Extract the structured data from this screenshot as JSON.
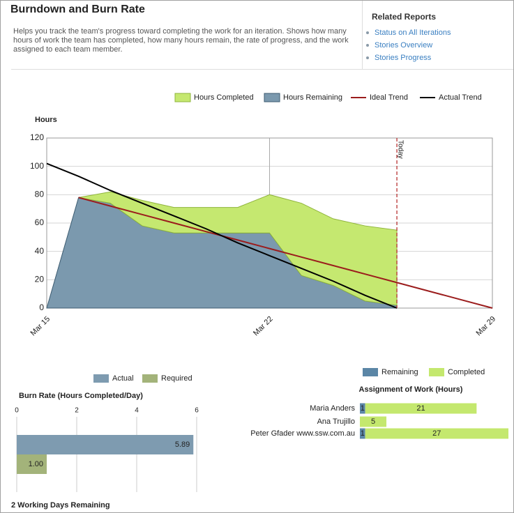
{
  "header": {
    "title": "Burndown and Burn Rate",
    "description": "Helps you track the team's progress toward completing the work for an iteration. Shows how many hours of work the team has completed, how many hours remain, the rate of progress, and the work assigned to each team member."
  },
  "related_reports": {
    "title": "Related Reports",
    "links": [
      "Status on All Iterations",
      "Stories Overview",
      "Stories Progress"
    ]
  },
  "chart_data": [
    {
      "type": "combo",
      "y_label": "Hours",
      "categories": [
        "Mar 15",
        null,
        null,
        null,
        null,
        null,
        null,
        "Mar 22",
        null,
        null,
        null,
        null,
        null,
        null,
        "Mar 29"
      ],
      "series": [
        {
          "name": "Hours Completed",
          "type": "area",
          "stacked": true,
          "color": "#c5e870",
          "stroke": "#8fb43c",
          "values": [
            null,
            0,
            8,
            18,
            18,
            18,
            18,
            27,
            51,
            47,
            53,
            53,
            null,
            null,
            null
          ]
        },
        {
          "name": "Hours Remaining",
          "type": "area",
          "stacked": true,
          "color": "#7b99ae",
          "stroke": "#3c5b70",
          "values": [
            0,
            78,
            74,
            58,
            53,
            53,
            53,
            53,
            23,
            16,
            5,
            2,
            null,
            null,
            null
          ]
        },
        {
          "name": "Ideal Trend",
          "type": "line",
          "color": "#9b1c1c",
          "values": [
            null,
            78,
            72,
            66,
            60,
            54,
            48,
            42,
            36,
            30,
            24,
            18,
            12,
            6,
            0
          ]
        },
        {
          "name": "Actual Trend",
          "type": "line",
          "color": "#000000",
          "values": [
            102,
            93,
            83,
            74,
            65,
            56,
            46,
            37,
            28,
            19,
            9,
            0,
            null,
            null,
            null
          ]
        }
      ],
      "ylim": [
        0,
        120
      ],
      "yticks": [
        0,
        20,
        40,
        60,
        80,
        100,
        120
      ],
      "grid": true,
      "annotations": [
        {
          "label": "Today",
          "index": 11,
          "color": "#b22222"
        }
      ]
    },
    {
      "type": "bar",
      "orientation": "horizontal",
      "title": "Burn Rate (Hours Completed/Day)",
      "series": [
        {
          "name": "Actual",
          "color": "#7e9bb0",
          "values": [
            5.89
          ],
          "value_labels": [
            "5.89"
          ]
        },
        {
          "name": "Required",
          "color": "#a3b37a",
          "values": [
            1
          ],
          "value_labels": [
            "1.00"
          ]
        }
      ],
      "xlim": [
        0,
        6
      ],
      "xticks": [
        0,
        2,
        4,
        6
      ],
      "grid": true
    },
    {
      "type": "bar",
      "orientation": "horizontal",
      "stacked": true,
      "title": "Assignment of Work (Hours)",
      "categories": [
        "Maria Anders",
        "Ana Trujillo",
        "Peter Gfader www.ssw.com.au"
      ],
      "series": [
        {
          "name": "Remaining",
          "color": "#5b86a6",
          "values": [
            1,
            null,
            1
          ]
        },
        {
          "name": "Completed",
          "color": "#c4e86e",
          "values": [
            21,
            5,
            27
          ]
        }
      ]
    }
  ],
  "footer": "2 Working Days Remaining"
}
